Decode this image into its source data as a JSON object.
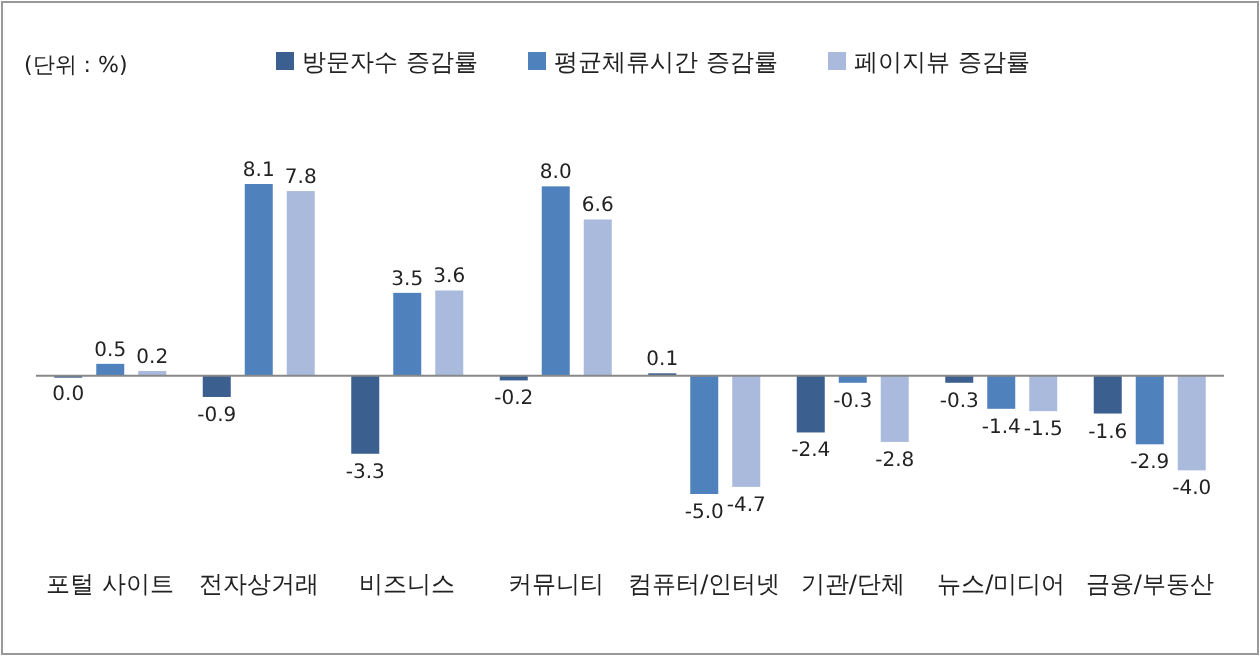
{
  "chart_data": {
    "type": "bar",
    "annotations": [
      "(단위 : %)"
    ],
    "categories": [
      "포털 사이트",
      "전자상거래",
      "비즈니스",
      "커뮤니티",
      "컴퓨터/인터넷",
      "기관/단체",
      "뉴스/미디어",
      "금융/부동산"
    ],
    "series": [
      {
        "name": "방문자수 증감률",
        "color": "#3b5f8e",
        "values": [
          0.0,
          -0.9,
          -3.3,
          -0.2,
          0.1,
          -2.4,
          -0.3,
          -1.6
        ],
        "value_labels": [
          "0.0",
          "-0.9",
          "-3.3",
          "-0.2",
          "0.1",
          "-2.4",
          "-0.3",
          "-1.6"
        ]
      },
      {
        "name": "평균체류시간 증감률",
        "color": "#4f81bd",
        "values": [
          0.5,
          8.1,
          3.5,
          8.0,
          -5.0,
          -0.3,
          -1.4,
          -2.9
        ],
        "value_labels": [
          "0.5",
          "8.1",
          "3.5",
          "8.0",
          "-5.0",
          "-0.3",
          "-1.4",
          "-2.9"
        ]
      },
      {
        "name": "페이지뷰 증감률",
        "color": "#a9badc",
        "values": [
          0.2,
          7.8,
          3.6,
          6.6,
          -4.7,
          -2.8,
          -1.5,
          -4.0
        ],
        "value_labels": [
          "0.2",
          "7.8",
          "3.6",
          "6.6",
          "-4.7",
          "-2.8",
          "-1.5",
          "-4.0"
        ]
      }
    ],
    "legend": "top"
  }
}
